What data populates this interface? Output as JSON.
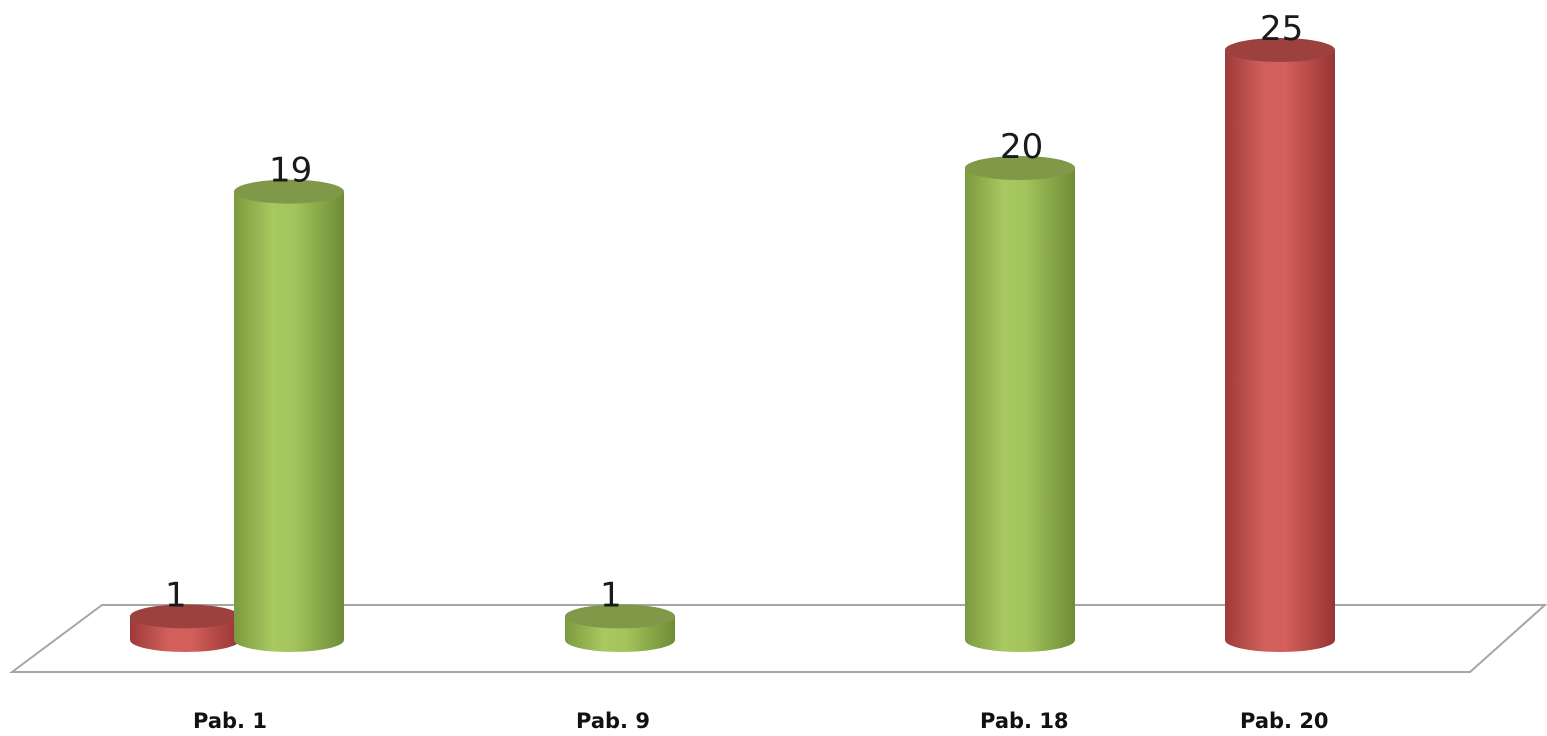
{
  "chart_data": {
    "type": "bar",
    "style": "3d-cylinder",
    "categories": [
      "Pab. 1",
      "Pab. 9",
      "Pab. 18",
      "Pab. 20"
    ],
    "series": [
      {
        "color": "#c0504d",
        "values": [
          1,
          null,
          null,
          25
        ]
      },
      {
        "color": "#9bbb59",
        "values": [
          19,
          1,
          20,
          null
        ]
      }
    ],
    "data_labels": true,
    "grid": false,
    "legend": "none",
    "ylim": [
      0,
      25
    ]
  }
}
